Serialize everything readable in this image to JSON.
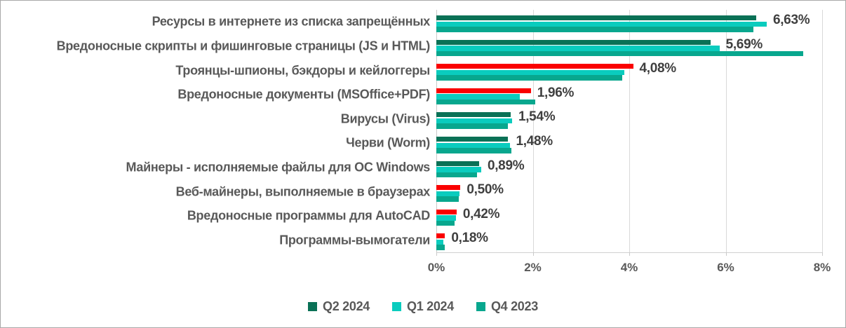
{
  "style": {
    "background": "#ffffff",
    "border_color": "#a9a9a9",
    "grid_color": "#d9d9d9",
    "axis_text_color": "#595959",
    "value_label_color": "#3f3f3f",
    "highlight_color": "#fa0000",
    "series_colors": [
      "#0a7156",
      "#0accbe",
      "#08a78e"
    ]
  },
  "chart_data": {
    "type": "bar",
    "orientation": "horizontal",
    "title": "",
    "xlabel": "",
    "ylabel": "",
    "xlim": [
      0,
      8
    ],
    "x_tick_labels": [
      "0%",
      "2%",
      "4%",
      "6%",
      "8%"
    ],
    "x_tick_values": [
      0,
      2,
      4,
      6,
      8
    ],
    "grid": true,
    "legend_position": "bottom",
    "categories": [
      "Ресурсы в интернете из списка запрещённых",
      "Вредоносные скрипты и фишинговые страницы (JS и HTML)",
      "Троянцы-шпионы, бэкдоры и кейлоггеры",
      "Вредоносные документы (MSOffice+PDF)",
      "Вирусы (Virus)",
      "Черви (Worm)",
      "Майнеры - исполняемые файлы для ОС Windows",
      "Веб-майнеры, выполняемые в браузерах",
      "Вредоносные программы для AutoCAD",
      "Программы-вымогатели"
    ],
    "series": [
      {
        "name": "Q2 2024",
        "color": "#0a7156",
        "values": [
          6.63,
          5.69,
          4.08,
          1.96,
          1.54,
          1.48,
          0.89,
          0.5,
          0.42,
          0.18
        ]
      },
      {
        "name": "Q1 2024",
        "color": "#0accbe",
        "values": [
          6.85,
          5.87,
          3.9,
          1.73,
          1.57,
          1.52,
          0.93,
          0.48,
          0.4,
          0.15
        ]
      },
      {
        "name": "Q4 2023",
        "color": "#08a78e",
        "values": [
          6.58,
          7.6,
          3.86,
          2.05,
          1.48,
          1.55,
          0.84,
          0.46,
          0.38,
          0.17
        ]
      }
    ],
    "value_labels": [
      "6,63%",
      "5,69%",
      "4,08%",
      "1,96%",
      "1,54%",
      "1,48%",
      "0,89%",
      "0,50%",
      "0,42%",
      "0,18%"
    ],
    "q2_red_flags": [
      false,
      false,
      true,
      true,
      false,
      false,
      false,
      true,
      true,
      true
    ]
  }
}
